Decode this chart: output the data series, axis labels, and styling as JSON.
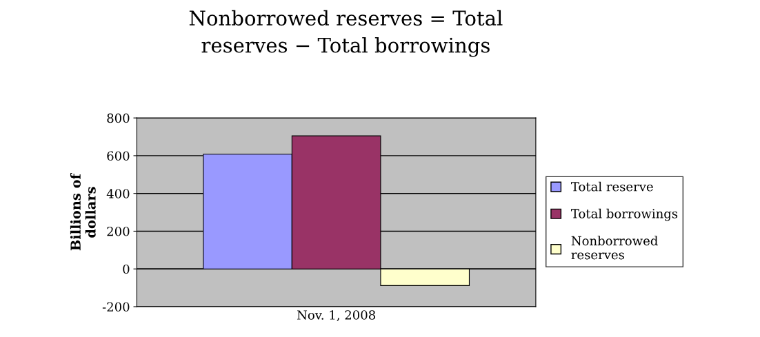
{
  "chart_data": {
    "type": "bar",
    "title": "Nonborrowed reserves = Total\nreserves − Total borrowings",
    "ylabel": "Billions of\ndollars",
    "categories": [
      "Nov. 1, 2008"
    ],
    "series": [
      {
        "name": "Total reserve",
        "color": "#9999ff",
        "values": [
          608
        ]
      },
      {
        "name": "Total borrowings",
        "color": "#993366",
        "values": [
          705
        ]
      },
      {
        "name": "Nonborrowed\nreserves",
        "color": "#ffffcc",
        "values": [
          -88
        ]
      }
    ],
    "ylim": [
      -200,
      800
    ],
    "yticks": [
      -200,
      0,
      200,
      400,
      600,
      800
    ],
    "grid": "y",
    "legend": "right"
  }
}
